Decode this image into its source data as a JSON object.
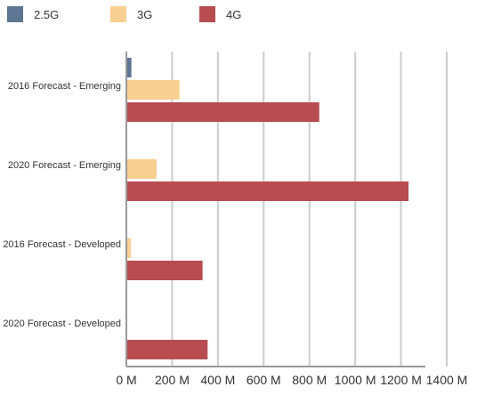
{
  "chart_data": {
    "type": "bar",
    "orientation": "horizontal",
    "categories": [
      "2016 Forecast - Emerging",
      "2020 Forecast - Emerging",
      "2016 Forecast - Developed",
      "2020 Forecast - Developed"
    ],
    "series": [
      {
        "name": "2.5G",
        "color": "#5e7593",
        "values": [
          22,
          0,
          0,
          0
        ]
      },
      {
        "name": "3G",
        "color": "#f9cf92",
        "values": [
          232,
          132,
          20,
          0
        ]
      },
      {
        "name": "4G",
        "color": "#b74c51",
        "values": [
          843,
          1233,
          333,
          355
        ]
      }
    ],
    "x_ticks": [
      0,
      200,
      400,
      600,
      800,
      1000,
      1200,
      1400
    ],
    "x_tick_labels": [
      "0 M",
      "200 M",
      "400 M",
      "600 M",
      "800 M",
      "1000 M",
      "1200 M",
      "1400 M"
    ],
    "xlim": [
      0,
      1400
    ],
    "grid": "vertical",
    "legend_position": "top-left",
    "title": "",
    "xlabel": "",
    "ylabel": ""
  }
}
